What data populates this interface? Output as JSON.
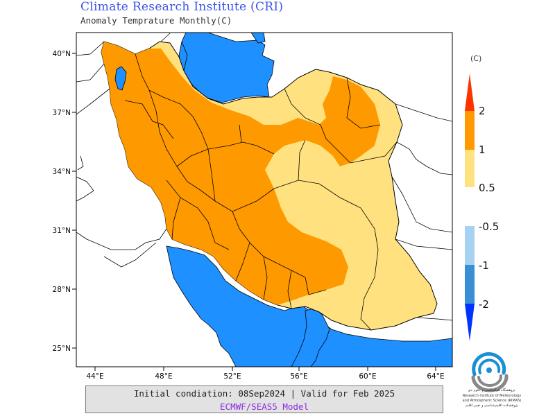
{
  "header": {
    "title": "Climate Research Institute (CRI)",
    "subtitle": "Anomaly Temprature Monthly(C)"
  },
  "map": {
    "lat_labels": [
      "40°N",
      "37°N",
      "34°N",
      "31°N",
      "28°N",
      "25°N"
    ],
    "lon_labels": [
      "44°E",
      "48°E",
      "52°E",
      "56°E",
      "60°E",
      "64°E"
    ],
    "colors": {
      "sea": "#1e90ff",
      "anomaly_0_5_to_1": "#ffe27f",
      "anomaly_1_to_2": "#ff9900",
      "anomaly_above_2": "#ff2a00",
      "border": "#000000"
    }
  },
  "legend": {
    "unit": "(C)",
    "labels": [
      "2",
      "1",
      "0.5",
      "-0.5",
      "-1",
      "-2"
    ],
    "colors": {
      "above_2": "#ff3300",
      "1_to_2": "#ff9900",
      "0_5_to_1": "#ffe27f",
      "neg_0_5_to_1": "#a6d1f0",
      "neg_1_to_2": "#3a8fd4",
      "below_neg_2": "#0033ff"
    }
  },
  "footer": {
    "line1": "Initial condiation: 08Sep2024 | Valid for Feb 2025",
    "line2": "ECMWF/SEAS5 Model"
  },
  "logo": {
    "text_fa": "پژوهشگاه هواشناسی و علوم جو",
    "text_en1": "Research Institute of Meteorology",
    "text_en2": "and Atmospheric Science (RIMAS)",
    "text_fa2": "پژوهشکده اقلیم‌شناسی و تغییر اقلیم"
  }
}
